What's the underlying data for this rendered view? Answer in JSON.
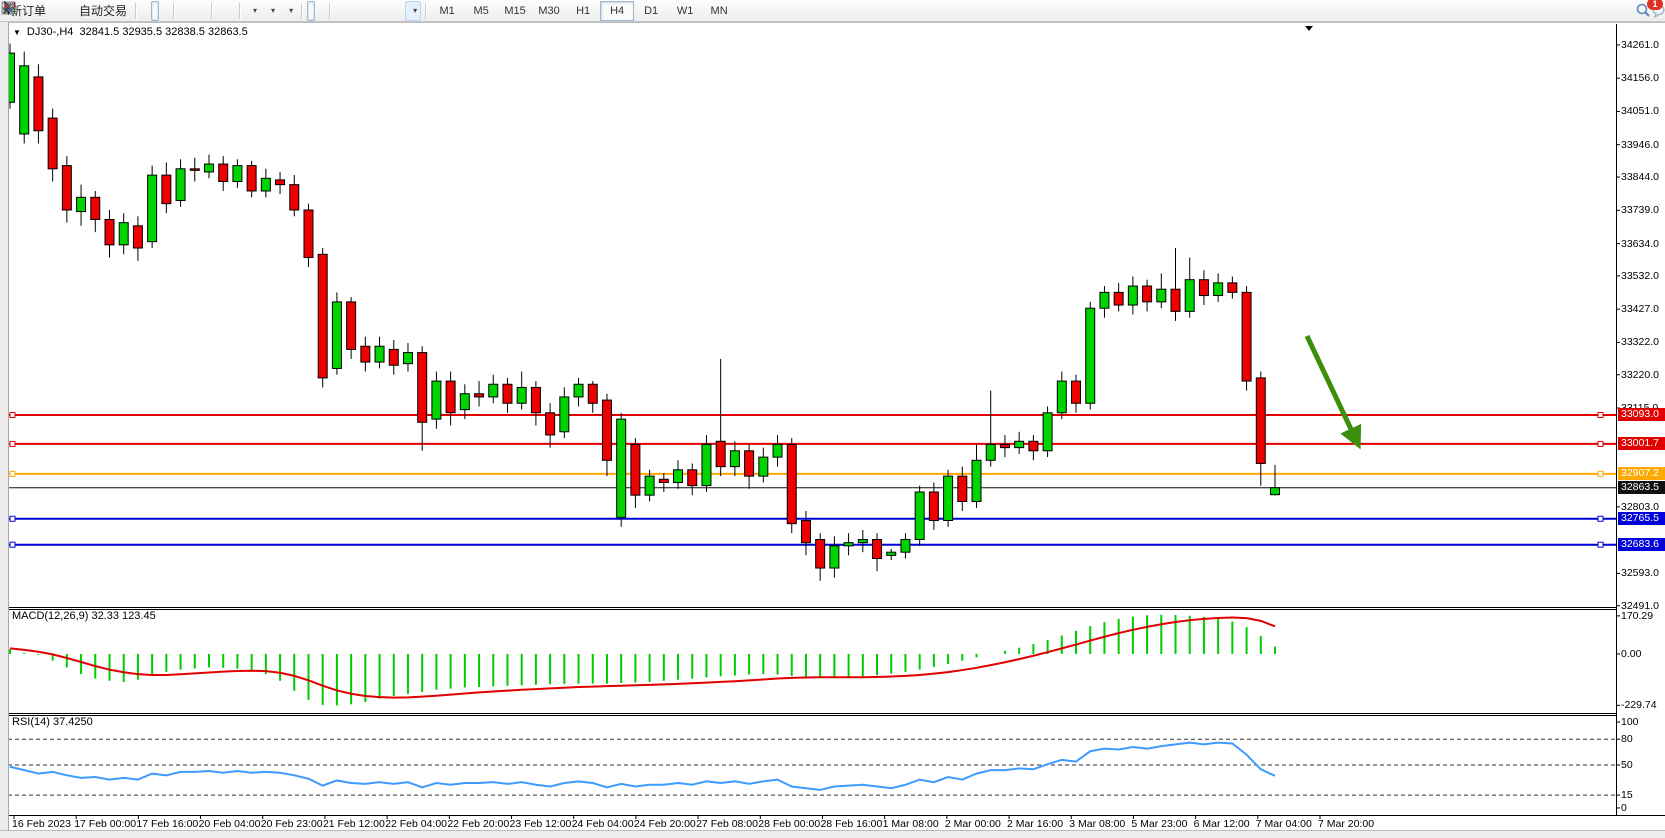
{
  "toolbar": {
    "groups": [
      {
        "items": [
          {
            "name": "new-order",
            "icon": "new-order",
            "label": "新订单"
          },
          {
            "name": "charts",
            "icon": "charts"
          },
          {
            "name": "market-watch",
            "icon": "signal"
          },
          {
            "name": "autotrade",
            "icon": "autotrade",
            "label": "自动交易"
          }
        ]
      },
      {
        "items": [
          {
            "name": "chart-bars",
            "icon": "bars"
          },
          {
            "name": "chart-candles",
            "icon": "candles",
            "active": true
          },
          {
            "name": "chart-line",
            "icon": "linechart"
          }
        ]
      },
      {
        "items": [
          {
            "name": "zoom-in",
            "icon": "zoom-in"
          },
          {
            "name": "zoom-out",
            "icon": "zoom-out"
          },
          {
            "name": "tile-windows",
            "icon": "tile"
          }
        ]
      },
      {
        "items": [
          {
            "name": "auto-scroll",
            "icon": "autoscroll"
          },
          {
            "name": "chart-shift",
            "icon": "shiftend"
          }
        ]
      },
      {
        "items": [
          {
            "name": "indicators",
            "icon": "indicators",
            "caret": true
          },
          {
            "name": "periods",
            "icon": "clock",
            "caret": true
          },
          {
            "name": "templates",
            "icon": "template",
            "caret": true
          }
        ]
      },
      {
        "items": [
          {
            "name": "cursor",
            "icon": "cursor",
            "active": true
          },
          {
            "name": "crosshair",
            "icon": "crosshair"
          }
        ]
      },
      {
        "items": [
          {
            "name": "vertical-line",
            "icon": "vline"
          },
          {
            "name": "horizontal-line",
            "icon": "hline"
          },
          {
            "name": "trendline",
            "icon": "tline"
          },
          {
            "name": "equidistant-channel",
            "icon": "channel-e"
          },
          {
            "name": "fibonacci",
            "icon": "fibo-f"
          },
          {
            "name": "text",
            "icon": "text-a"
          },
          {
            "name": "text-label",
            "icon": "label-t"
          },
          {
            "name": "arrows",
            "icon": "arrows",
            "caret": true
          }
        ]
      }
    ],
    "timeframes": {
      "options": [
        "M1",
        "M5",
        "M15",
        "M30",
        "H1",
        "H4",
        "D1",
        "W1",
        "MN"
      ],
      "active": "H4"
    },
    "right": [
      {
        "name": "search",
        "icon": "search"
      },
      {
        "name": "notifications",
        "icon": "chat",
        "badge": "1"
      }
    ]
  },
  "chart": {
    "title": {
      "collapse_icon": "▼",
      "symbol_period": "DJ30-,H4",
      "ohlc_text": "32841.5 32935.5 32838.5 32863.5"
    }
  },
  "chart_data": {
    "type": "candlestick",
    "symbol": "DJ30-",
    "timeframe": "H4",
    "current_bar": {
      "open": "32841.5",
      "high": "32935.5",
      "low": "32838.5",
      "close": "32863.5"
    },
    "colors": {
      "bull": "#00D400",
      "bear": "#EE0000",
      "outline": "#000000",
      "macd_hist": "#00CC00",
      "macd_signal": "#E00000",
      "rsi_line": "#3E9BFF"
    },
    "price_axis": {
      "visible_range": [
        32487,
        34327
      ],
      "ticks": [
        "34261.0",
        "34156.0",
        "34051.0",
        "33946.0",
        "33844.0",
        "33739.0",
        "33634.0",
        "33532.0",
        "33427.0",
        "33322.0",
        "33220.0",
        "33115.0",
        "32803.0",
        "32593.0",
        "32491.0"
      ]
    },
    "hlines": [
      {
        "price": 33093.0,
        "label": "33093.0",
        "color": "#E00000",
        "width": 2,
        "handles": true
      },
      {
        "price": 33001.7,
        "label": "33001.7",
        "color": "#E00000",
        "width": 2,
        "handles": true
      },
      {
        "price": 32907.2,
        "label": "32907.2",
        "color": "#FFA800",
        "width": 2,
        "handles": true
      },
      {
        "price": 32863.5,
        "label": "32863.5",
        "color": "#111111",
        "width": 1,
        "handles": false,
        "is_current_price": true
      },
      {
        "price": 32765.5,
        "label": "32765.5",
        "color": "#0000D8",
        "width": 2,
        "handles": true
      },
      {
        "price": 32683.6,
        "label": "32683.6",
        "color": "#0000D8",
        "width": 2,
        "handles": true
      }
    ],
    "bars": [
      [
        34080,
        34265,
        34060,
        34235
      ],
      [
        33980,
        34240,
        33950,
        34195
      ],
      [
        34160,
        34200,
        33950,
        33990
      ],
      [
        34030,
        34060,
        33830,
        33870
      ],
      [
        33880,
        33910,
        33700,
        33740
      ],
      [
        33735,
        33820,
        33690,
        33780
      ],
      [
        33780,
        33800,
        33670,
        33710
      ],
      [
        33710,
        33740,
        33590,
        33630
      ],
      [
        33630,
        33730,
        33600,
        33700
      ],
      [
        33690,
        33720,
        33580,
        33620
      ],
      [
        33640,
        33880,
        33620,
        33850
      ],
      [
        33850,
        33890,
        33730,
        33760
      ],
      [
        33770,
        33900,
        33750,
        33870
      ],
      [
        33870,
        33905,
        33830,
        33865
      ],
      [
        33860,
        33915,
        33840,
        33885
      ],
      [
        33885,
        33910,
        33800,
        33830
      ],
      [
        33830,
        33900,
        33810,
        33880
      ],
      [
        33880,
        33895,
        33780,
        33800
      ],
      [
        33800,
        33870,
        33780,
        33840
      ],
      [
        33835,
        33860,
        33790,
        33820
      ],
      [
        33820,
        33850,
        33720,
        33740
      ],
      [
        33740,
        33760,
        33560,
        33590
      ],
      [
        33600,
        33620,
        33180,
        33210
      ],
      [
        33240,
        33480,
        33220,
        33450
      ],
      [
        33450,
        33465,
        33270,
        33300
      ],
      [
        33310,
        33340,
        33230,
        33260
      ],
      [
        33260,
        33340,
        33240,
        33310
      ],
      [
        33300,
        33330,
        33220,
        33250
      ],
      [
        33255,
        33320,
        33230,
        33290
      ],
      [
        33290,
        33310,
        32980,
        33070
      ],
      [
        33080,
        33230,
        33050,
        33200
      ],
      [
        33200,
        33230,
        33060,
        33100
      ],
      [
        33110,
        33190,
        33080,
        33160
      ],
      [
        33160,
        33200,
        33120,
        33150
      ],
      [
        33150,
        33220,
        33130,
        33190
      ],
      [
        33190,
        33210,
        33100,
        33130
      ],
      [
        33130,
        33230,
        33110,
        33180
      ],
      [
        33180,
        33200,
        33060,
        33100
      ],
      [
        33100,
        33130,
        32990,
        33030
      ],
      [
        33040,
        33180,
        33020,
        33150
      ],
      [
        33150,
        33210,
        33120,
        33190
      ],
      [
        33190,
        33200,
        33100,
        33130
      ],
      [
        33140,
        33160,
        32900,
        32950
      ],
      [
        32770,
        33100,
        32740,
        33080
      ],
      [
        33000,
        33020,
        32800,
        32840
      ],
      [
        32840,
        32920,
        32820,
        32900
      ],
      [
        32890,
        32910,
        32850,
        32880
      ],
      [
        32880,
        32950,
        32860,
        32920
      ],
      [
        32920,
        32940,
        32840,
        32870
      ],
      [
        32870,
        33030,
        32850,
        33000
      ],
      [
        33010,
        33270,
        32900,
        32930
      ],
      [
        32930,
        33010,
        32900,
        32980
      ],
      [
        32980,
        33000,
        32860,
        32900
      ],
      [
        32900,
        32990,
        32880,
        32960
      ],
      [
        32960,
        33030,
        32930,
        33000
      ],
      [
        33000,
        33020,
        32720,
        32750
      ],
      [
        32760,
        32790,
        32650,
        32690
      ],
      [
        32700,
        32720,
        32570,
        32610
      ],
      [
        32610,
        32710,
        32580,
        32680
      ],
      [
        32680,
        32720,
        32650,
        32690
      ],
      [
        32690,
        32730,
        32660,
        32700
      ],
      [
        32700,
        32720,
        32600,
        32640
      ],
      [
        32650,
        32670,
        32635,
        32660
      ],
      [
        32660,
        32720,
        32640,
        32700
      ],
      [
        32700,
        32870,
        32680,
        32850
      ],
      [
        32850,
        32880,
        32730,
        32760
      ],
      [
        32760,
        32920,
        32740,
        32900
      ],
      [
        32900,
        32930,
        32790,
        32820
      ],
      [
        32820,
        33000,
        32800,
        32950
      ],
      [
        32950,
        33170,
        32930,
        33000
      ],
      [
        33000,
        33030,
        32960,
        32990
      ],
      [
        32990,
        33040,
        32970,
        33010
      ],
      [
        33010,
        33030,
        32950,
        32980
      ],
      [
        32980,
        33120,
        32960,
        33100
      ],
      [
        33100,
        33230,
        33080,
        33200
      ],
      [
        33200,
        33220,
        33100,
        33130
      ],
      [
        33130,
        33450,
        33110,
        33430
      ],
      [
        33430,
        33500,
        33400,
        33480
      ],
      [
        33480,
        33510,
        33420,
        33440
      ],
      [
        33440,
        33530,
        33410,
        33500
      ],
      [
        33500,
        33520,
        33420,
        33450
      ],
      [
        33450,
        33540,
        33430,
        33490
      ],
      [
        33490,
        33620,
        33390,
        33420
      ],
      [
        33420,
        33590,
        33400,
        33520
      ],
      [
        33520,
        33550,
        33440,
        33470
      ],
      [
        33470,
        33540,
        33450,
        33510
      ],
      [
        33510,
        33530,
        33460,
        33480
      ],
      [
        33480,
        33500,
        33170,
        33200
      ],
      [
        33210,
        33230,
        32870,
        32940
      ],
      [
        32841.5,
        32935.5,
        32838.5,
        32863.5
      ]
    ],
    "time_axis": {
      "labels": [
        "16 Feb 2023",
        "17 Feb 00:00",
        "17 Feb 16:00",
        "20 Feb 04:00",
        "20 Feb 23:00",
        "21 Feb 12:00",
        "22 Feb 04:00",
        "22 Feb 20:00",
        "23 Feb 12:00",
        "24 Feb 04:00",
        "24 Feb 20:00",
        "27 Feb 08:00",
        "28 Feb 00:00",
        "28 Feb 16:00",
        "1 Mar 08:00",
        "2 Mar 00:00",
        "2 Mar 16:00",
        "3 Mar 08:00",
        "5 Mar 23:00",
        "6 Mar 12:00",
        "7 Mar 04:00",
        "7 Mar 20:00"
      ]
    },
    "indicators": {
      "macd": {
        "label": "MACD(12,26,9) 32.33 123.45",
        "params": [
          12,
          26,
          9
        ],
        "current_main": 32.33,
        "current_signal": 123.45,
        "ticks": [
          "170.29",
          "0.00",
          "-229.74"
        ],
        "tick_values": [
          170.29,
          0,
          -229.74
        ],
        "range": [
          201,
          -264
        ],
        "histogram": [
          20,
          5,
          -5,
          -30,
          -60,
          -90,
          -110,
          -120,
          -125,
          -115,
          -95,
          -80,
          -70,
          -65,
          -60,
          -62,
          -66,
          -72,
          -90,
          -120,
          -165,
          -205,
          -228,
          -230,
          -225,
          -215,
          -200,
          -188,
          -178,
          -170,
          -160,
          -155,
          -150,
          -148,
          -145,
          -142,
          -140,
          -138,
          -136,
          -134,
          -133,
          -132,
          -133,
          -130,
          -128,
          -125,
          -120,
          -115,
          -110,
          -105,
          -100,
          -96,
          -92,
          -90,
          -92,
          -98,
          -104,
          -108,
          -108,
          -105,
          -100,
          -95,
          -88,
          -80,
          -70,
          -58,
          -45,
          -30,
          -15,
          0,
          14,
          28,
          44,
          62,
          82,
          103,
          124,
          142,
          157,
          167,
          173,
          175,
          174,
          171,
          166,
          158,
          145,
          120,
          80,
          32.33
        ],
        "signal": [
          25,
          18,
          10,
          -2,
          -18,
          -36,
          -54,
          -70,
          -82,
          -90,
          -94,
          -94,
          -91,
          -87,
          -83,
          -79,
          -76,
          -75,
          -77,
          -84,
          -98,
          -118,
          -142,
          -163,
          -178,
          -188,
          -193,
          -195,
          -194,
          -191,
          -187,
          -182,
          -177,
          -172,
          -168,
          -164,
          -160,
          -157,
          -154,
          -151,
          -148,
          -146,
          -144,
          -142,
          -140,
          -138,
          -136,
          -134,
          -131,
          -128,
          -125,
          -122,
          -118,
          -114,
          -110,
          -107,
          -105,
          -104,
          -104,
          -104,
          -104,
          -103,
          -101,
          -98,
          -94,
          -88,
          -81,
          -72,
          -62,
          -50,
          -37,
          -23,
          -8,
          8,
          25,
          42,
          60,
          77,
          93,
          108,
          121,
          133,
          143,
          151,
          157,
          161,
          163,
          160,
          148,
          123.45
        ]
      },
      "rsi": {
        "label": "RSI(14) 37.4250",
        "period": 14,
        "current": 37.425,
        "ticks": [
          "100",
          "80",
          "50",
          "15",
          "0"
        ],
        "tick_values": [
          100,
          80,
          50,
          15,
          0
        ],
        "levels": [
          80,
          50,
          15
        ],
        "range": [
          108.2,
          -8.2
        ],
        "values": [
          48,
          44,
          40,
          42,
          38,
          35,
          36,
          33,
          35,
          33,
          40,
          38,
          42,
          42,
          43,
          41,
          43,
          41,
          42,
          41,
          38,
          34,
          26,
          32,
          29,
          28,
          30,
          28,
          30,
          24,
          29,
          27,
          29,
          29,
          30,
          28,
          30,
          27,
          25,
          29,
          31,
          29,
          24,
          28,
          25,
          27,
          27,
          29,
          27,
          31,
          29,
          31,
          28,
          31,
          33,
          25,
          23,
          21,
          25,
          26,
          27,
          25,
          23,
          27,
          33,
          30,
          36,
          33,
          40,
          44,
          44,
          46,
          45,
          51,
          56,
          54,
          66,
          69,
          68,
          71,
          69,
          72,
          74,
          76,
          74,
          76,
          75,
          62,
          45,
          37.4
        ]
      }
    },
    "annotations": {
      "arrow": {
        "from": [
          1307,
          314
        ],
        "to": [
          1358,
          422
        ],
        "color": "#3E8E0E"
      }
    }
  }
}
